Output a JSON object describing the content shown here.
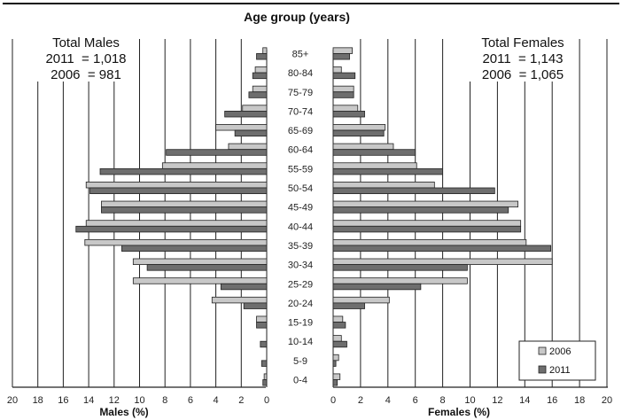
{
  "chart_data": {
    "type": "bar",
    "title": "Age group (years)",
    "xlabel_left": "Males (%)",
    "xlabel_right": "Females (%)",
    "males_total": {
      "heading": "Total Males",
      "line_2011": "2011  = 1,018",
      "line_2006": "2006  = 981"
    },
    "females_total": {
      "heading": "Total Females",
      "line_2011": "2011  = 1,143",
      "line_2006": "2006  = 1,065"
    },
    "categories": [
      "0-4",
      "5-9",
      "10-14",
      "15-19",
      "20-24",
      "25-29",
      "30-34",
      "35-39",
      "40-44",
      "45-49",
      "50-54",
      "55-59",
      "60-64",
      "65-69",
      "70-74",
      "75-79",
      "80-84",
      "85+"
    ],
    "xlim": [
      0,
      20
    ],
    "x_ticks": [
      0,
      2,
      4,
      6,
      8,
      10,
      12,
      14,
      16,
      18,
      20
    ],
    "x_tick_labels": [
      "0",
      "2",
      "4",
      "6",
      "8",
      "10",
      "12",
      "14",
      "16",
      "18",
      "20"
    ],
    "legend": [
      {
        "label": "2006",
        "color": "#c8c8c8"
      },
      {
        "label": "2011",
        "color": "#6e6e6e"
      }
    ],
    "series": [
      {
        "name": "2006",
        "color": "#c8c8c8",
        "males": [
          0.2,
          0.0,
          0.0,
          0.8,
          4.3,
          10.5,
          10.5,
          14.3,
          14.2,
          13.0,
          14.2,
          8.2,
          3.0,
          4.0,
          1.9,
          1.1,
          0.9,
          0.3
        ],
        "females": [
          0.5,
          0.4,
          0.6,
          0.7,
          4.1,
          9.8,
          16.0,
          14.1,
          13.7,
          13.5,
          7.4,
          6.1,
          4.4,
          3.8,
          1.8,
          1.5,
          0.6,
          1.4
        ]
      },
      {
        "name": "2011",
        "color": "#6e6e6e",
        "males": [
          0.3,
          0.4,
          0.5,
          0.8,
          1.8,
          3.6,
          9.4,
          11.4,
          15.0,
          13.0,
          13.9,
          13.1,
          7.9,
          2.5,
          3.3,
          1.4,
          1.1,
          0.8
        ],
        "females": [
          0.3,
          0.2,
          1.0,
          0.9,
          2.3,
          6.4,
          9.8,
          15.9,
          13.7,
          12.8,
          11.8,
          8.0,
          6.0,
          3.7,
          2.3,
          1.5,
          1.6,
          1.2
        ]
      }
    ]
  }
}
